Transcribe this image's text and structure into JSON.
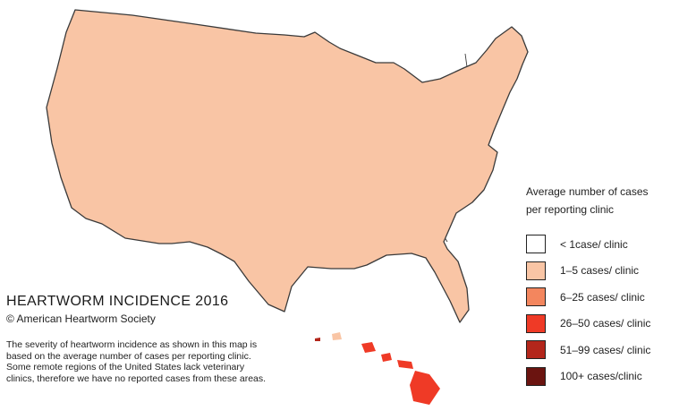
{
  "title": "HEARTWORM INCIDENCE 2016",
  "copyright": "© American Heartworm Society",
  "description": "The severity of heartworm incidence as shown in this map is based on the average number of cases per reporting clinic.  Some remote regions of the United States lack veterinary clinics, therefore we have no reported cases from these areas.",
  "legend": {
    "title_line1": "Average number of cases",
    "title_line2": "per reporting clinic",
    "items": [
      {
        "label": "< 1case/ clinic",
        "color": "#ffffff"
      },
      {
        "label": "1–5 cases/ clinic",
        "color": "#f9c5a5"
      },
      {
        "label": "6–25  cases/ clinic",
        "color": "#f3865e"
      },
      {
        "label": "26–50  cases/ clinic",
        "color": "#ef3a26"
      },
      {
        "label": "51–99 cases/ clinic",
        "color": "#b3261b"
      },
      {
        "label": "100+ cases/clinic",
        "color": "#6b1410"
      }
    ]
  },
  "colors": {
    "outline": "#3a3a3a",
    "no_data": "#ffffff",
    "level1": "#f9c5a5",
    "level2": "#f3865e",
    "level3": "#ef3a26",
    "level4": "#b3261b",
    "level5": "#6b1410",
    "water": "#a9a9e6"
  }
}
